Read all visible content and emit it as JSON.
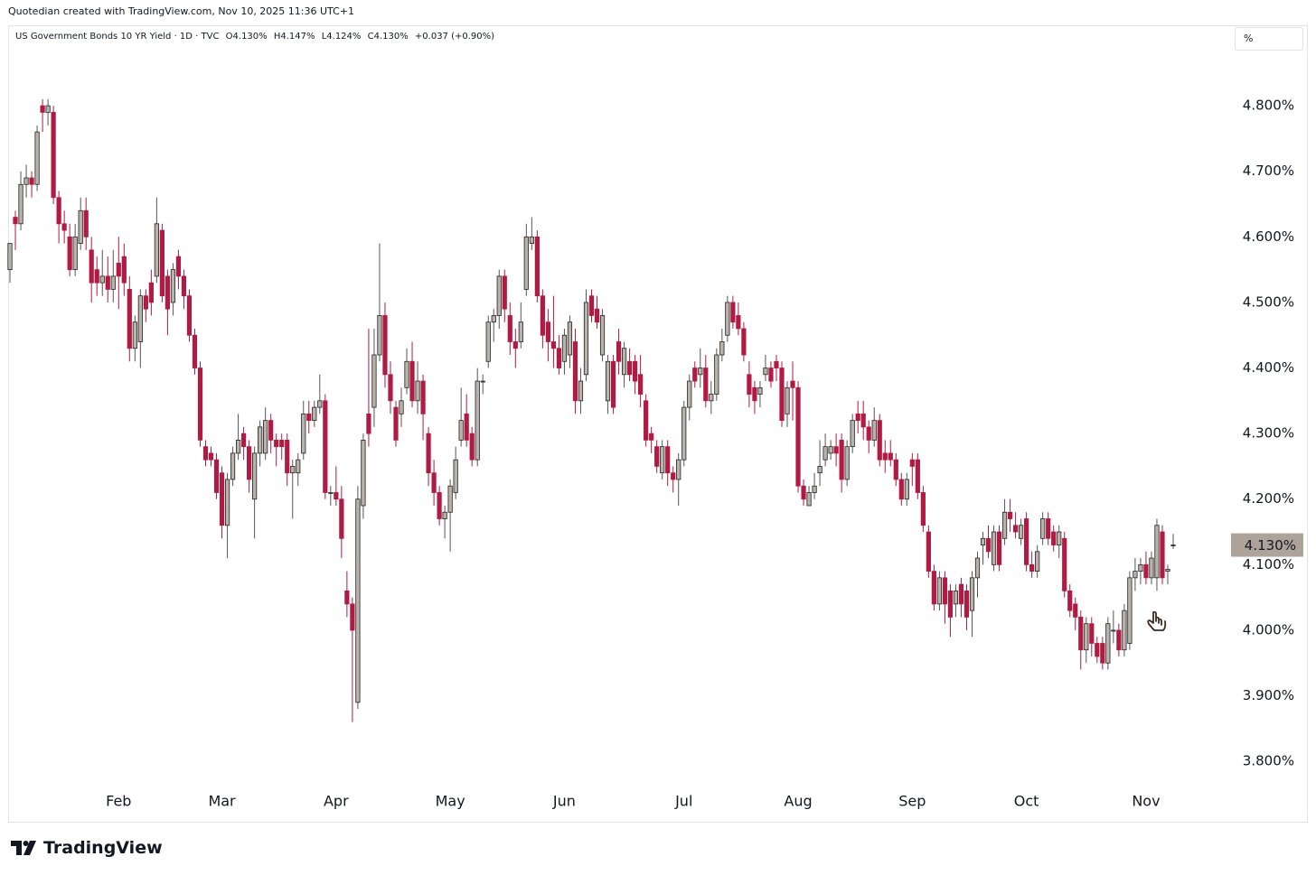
{
  "chart_data": {
    "type": "candlestick",
    "attribution": "Quotedian created with TradingView.com, Nov 10, 2025 11:36 UTC+1",
    "title": "US Government Bonds 10 YR Yield · 1D · TVC",
    "ohlc_labels": [
      "O4.130%",
      "H4.147%",
      "L4.124%",
      "C4.130%",
      "+0.037 (+0.90%)"
    ],
    "unit_button": "%",
    "logo_text": "TradingView",
    "up_color": "#bab3ac",
    "down_color": "#b11a42",
    "categories": [
      null,
      null,
      null,
      null,
      null,
      null,
      null,
      null,
      null,
      null,
      null,
      null,
      null,
      null,
      null,
      null,
      null,
      null,
      null,
      null,
      "Feb",
      null,
      null,
      null,
      null,
      null,
      null,
      null,
      null,
      null,
      null,
      null,
      null,
      null,
      null,
      null,
      null,
      null,
      null,
      "Mar",
      null,
      null,
      null,
      null,
      null,
      null,
      null,
      null,
      null,
      null,
      null,
      null,
      null,
      null,
      null,
      null,
      null,
      null,
      null,
      null,
      "Apr",
      null,
      null,
      null,
      null,
      null,
      null,
      null,
      null,
      null,
      null,
      null,
      null,
      null,
      null,
      null,
      null,
      null,
      null,
      null,
      null,
      "May",
      null,
      null,
      null,
      null,
      null,
      null,
      null,
      null,
      null,
      null,
      null,
      null,
      null,
      null,
      null,
      null,
      null,
      null,
      null,
      null,
      "Jun",
      null,
      null,
      null,
      null,
      null,
      null,
      null,
      null,
      null,
      null,
      null,
      null,
      null,
      null,
      null,
      null,
      null,
      null,
      null,
      null,
      null,
      "Jul",
      null,
      null,
      null,
      null,
      null,
      null,
      null,
      null,
      null,
      null,
      null,
      null,
      null,
      null,
      null,
      null,
      null,
      null,
      null,
      null,
      "Aug",
      null,
      null,
      null,
      null,
      null,
      null,
      null,
      null,
      null,
      null,
      null,
      null,
      null,
      null,
      null,
      null,
      null,
      null,
      null,
      null,
      "Sep",
      null,
      null,
      null,
      null,
      null,
      null,
      null,
      null,
      null,
      null,
      null,
      null,
      null,
      null,
      null,
      null,
      null,
      null,
      null,
      null,
      "Oct",
      null,
      null,
      null,
      null,
      null,
      null,
      null,
      null,
      null,
      null,
      null,
      null,
      null,
      null,
      null,
      null,
      null,
      null,
      null,
      null,
      null,
      "Nov",
      null,
      null,
      null,
      null,
      null
    ],
    "open": [
      4.55,
      4.63,
      4.62,
      4.68,
      4.69,
      4.68,
      4.8,
      4.79,
      4.79,
      4.66,
      4.62,
      4.6,
      4.55,
      4.59,
      4.64,
      4.58,
      4.55,
      4.53,
      4.54,
      4.52,
      4.56,
      4.57,
      4.52,
      4.43,
      4.44,
      4.51,
      4.53,
      4.54,
      4.61,
      4.54,
      4.5,
      4.57,
      4.54,
      4.51,
      4.45,
      4.4,
      4.28,
      4.27,
      4.26,
      4.24,
      4.16,
      4.23,
      4.27,
      4.3,
      4.28,
      4.2,
      4.27,
      4.27,
      4.32,
      4.29,
      4.29,
      4.29,
      4.24,
      4.24,
      4.27,
      4.33,
      4.32,
      4.34,
      4.35,
      4.21,
      4.21,
      4.2,
      4.06,
      4.04,
      3.89,
      4.19,
      4.33,
      4.34,
      4.42,
      4.48,
      4.39,
      4.34,
      4.33,
      4.37,
      4.41,
      4.35,
      4.38,
      4.3,
      4.24,
      4.21,
      4.17,
      4.18,
      4.21,
      4.29,
      4.33,
      4.3,
      4.26,
      4.38,
      4.41,
      4.47,
      4.48,
      4.54,
      4.48,
      4.44,
      4.44,
      4.52,
      4.59,
      4.6,
      4.51,
      4.47,
      4.44,
      4.43,
      4.41,
      4.42,
      4.44,
      4.35,
      4.39,
      4.51,
      4.49,
      4.42,
      4.35,
      4.41,
      4.44,
      4.39,
      4.41,
      4.41,
      4.39,
      4.35,
      4.3,
      4.28,
      4.24,
      4.28,
      4.24,
      4.23,
      4.26,
      4.34,
      4.4,
      4.39,
      4.4,
      4.35,
      4.36,
      4.42,
      4.45,
      4.5,
      4.48,
      4.46,
      4.39,
      4.37,
      4.36,
      4.39,
      4.4,
      4.41,
      4.4,
      4.33,
      4.38,
      4.37,
      4.22,
      4.19,
      4.21,
      4.24,
      4.26,
      4.27,
      4.28,
      4.29,
      4.23,
      4.28,
      4.33,
      4.33,
      4.31,
      4.29,
      4.32,
      4.27,
      4.27,
      4.26,
      4.23,
      4.2,
      4.26,
      4.26,
      4.21,
      4.15,
      4.09,
      4.04,
      4.08,
      4.06,
      4.04,
      4.07,
      4.06,
      4.03,
      4.08,
      4.13,
      4.14,
      4.1,
      4.15,
      4.14,
      4.18,
      4.16,
      4.14,
      4.17,
      4.1,
      4.09,
      4.14,
      4.17,
      4.15,
      4.13,
      4.14,
      4.06,
      4.04,
      4.02,
      3.97,
      4.01,
      3.98,
      3.98,
      3.95,
      4.0,
      4.0,
      3.97,
      3.98,
      4.08,
      4.09,
      4.1,
      4.08,
      4.08,
      4.15,
      4.09,
      4.13
    ],
    "high": [
      4.59,
      4.64,
      4.7,
      4.71,
      4.7,
      4.77,
      4.81,
      4.81,
      4.8,
      4.67,
      4.64,
      4.62,
      4.62,
      4.66,
      4.66,
      4.6,
      4.57,
      4.58,
      4.57,
      4.58,
      4.6,
      4.59,
      4.54,
      4.48,
      4.52,
      4.52,
      4.55,
      4.66,
      4.62,
      4.55,
      4.56,
      4.58,
      4.55,
      4.52,
      4.46,
      4.41,
      4.29,
      4.28,
      4.27,
      4.25,
      4.24,
      4.28,
      4.33,
      4.31,
      4.29,
      4.28,
      4.32,
      4.34,
      4.33,
      4.3,
      4.3,
      4.3,
      4.26,
      4.27,
      4.35,
      4.35,
      4.35,
      4.39,
      4.36,
      4.22,
      4.25,
      4.22,
      4.09,
      4.05,
      4.22,
      4.3,
      4.46,
      4.46,
      4.59,
      4.5,
      4.41,
      4.35,
      4.37,
      4.43,
      4.44,
      4.41,
      4.39,
      4.31,
      4.26,
      4.22,
      4.19,
      4.23,
      4.28,
      4.37,
      4.36,
      4.31,
      4.4,
      4.39,
      4.48,
      4.49,
      4.55,
      4.55,
      4.5,
      4.46,
      4.5,
      4.62,
      4.63,
      4.61,
      4.52,
      4.49,
      4.51,
      4.45,
      4.46,
      4.48,
      4.46,
      4.4,
      4.52,
      4.52,
      4.51,
      4.49,
      4.42,
      4.42,
      4.46,
      4.44,
      4.43,
      4.42,
      4.42,
      4.36,
      4.31,
      4.29,
      4.29,
      4.29,
      4.25,
      4.27,
      4.35,
      4.39,
      4.41,
      4.43,
      4.42,
      4.38,
      4.43,
      4.46,
      4.51,
      4.51,
      4.5,
      4.47,
      4.41,
      4.38,
      4.38,
      4.42,
      4.41,
      4.42,
      4.41,
      4.38,
      4.41,
      4.38,
      4.23,
      4.22,
      4.24,
      4.29,
      4.3,
      4.29,
      4.3,
      4.3,
      4.29,
      4.33,
      4.35,
      4.35,
      4.32,
      4.34,
      4.33,
      4.29,
      4.29,
      4.27,
      4.24,
      4.24,
      4.27,
      4.27,
      4.22,
      4.16,
      4.1,
      4.09,
      4.09,
      4.07,
      4.07,
      4.08,
      4.07,
      4.09,
      4.12,
      4.15,
      4.16,
      4.16,
      4.16,
      4.2,
      4.2,
      4.18,
      4.17,
      4.18,
      4.12,
      4.13,
      4.18,
      4.18,
      4.16,
      4.16,
      4.15,
      4.07,
      4.05,
      4.03,
      4.02,
      4.02,
      3.99,
      3.99,
      4.02,
      4.03,
      4.01,
      4.04,
      4.09,
      4.11,
      4.11,
      4.12,
      4.12,
      4.17,
      4.16,
      4.1,
      4.147
    ],
    "low": [
      4.53,
      4.58,
      4.61,
      4.66,
      4.66,
      4.67,
      4.76,
      4.77,
      4.65,
      4.59,
      4.59,
      4.54,
      4.54,
      4.58,
      4.58,
      4.5,
      4.51,
      4.51,
      4.5,
      4.5,
      4.49,
      4.51,
      4.41,
      4.41,
      4.4,
      4.47,
      4.48,
      4.53,
      4.5,
      4.45,
      4.48,
      4.52,
      4.49,
      4.44,
      4.39,
      4.28,
      4.25,
      4.25,
      4.2,
      4.14,
      4.11,
      4.22,
      4.26,
      4.26,
      4.21,
      4.14,
      4.25,
      4.26,
      4.27,
      4.25,
      4.26,
      4.22,
      4.17,
      4.22,
      4.26,
      4.3,
      4.31,
      4.33,
      4.2,
      4.19,
      4.19,
      4.11,
      4.02,
      3.86,
      3.88,
      4.17,
      4.28,
      4.31,
      4.41,
      4.37,
      4.33,
      4.28,
      4.31,
      4.36,
      4.34,
      4.33,
      4.29,
      4.22,
      4.19,
      4.16,
      4.14,
      4.12,
      4.2,
      4.28,
      4.28,
      4.25,
      4.25,
      4.36,
      4.4,
      4.44,
      4.46,
      4.47,
      4.42,
      4.4,
      4.43,
      4.51,
      4.58,
      4.5,
      4.43,
      4.41,
      4.4,
      4.39,
      4.39,
      4.4,
      4.33,
      4.33,
      4.38,
      4.47,
      4.46,
      4.41,
      4.33,
      4.33,
      4.39,
      4.37,
      4.38,
      4.36,
      4.34,
      4.28,
      4.27,
      4.24,
      4.23,
      4.22,
      4.21,
      4.19,
      4.25,
      4.32,
      4.37,
      4.37,
      4.34,
      4.33,
      4.35,
      4.41,
      4.44,
      4.46,
      4.45,
      4.41,
      4.34,
      4.33,
      4.34,
      4.38,
      4.37,
      4.38,
      4.31,
      4.31,
      4.32,
      4.21,
      4.19,
      4.19,
      4.2,
      4.22,
      4.25,
      4.26,
      4.25,
      4.21,
      4.22,
      4.27,
      4.3,
      4.29,
      4.27,
      4.28,
      4.25,
      4.24,
      4.25,
      4.22,
      4.19,
      4.19,
      4.22,
      4.2,
      4.15,
      4.08,
      4.03,
      4.03,
      4.01,
      3.99,
      4.02,
      4.02,
      4.0,
      3.99,
      4.05,
      4.1,
      4.11,
      4.09,
      4.09,
      4.13,
      4.15,
      4.14,
      4.13,
      4.09,
      4.08,
      4.08,
      4.13,
      4.13,
      4.12,
      4.11,
      4.05,
      4.02,
      4.0,
      3.94,
      3.95,
      3.96,
      3.95,
      3.94,
      3.94,
      3.98,
      3.96,
      3.96,
      3.97,
      4.06,
      4.07,
      4.07,
      4.07,
      4.06,
      4.07,
      4.07,
      4.124
    ],
    "close": [
      4.59,
      4.62,
      4.68,
      4.69,
      4.68,
      4.76,
      4.79,
      4.8,
      4.66,
      4.62,
      4.61,
      4.55,
      4.6,
      4.64,
      4.6,
      4.53,
      4.53,
      4.54,
      4.52,
      4.54,
      4.54,
      4.53,
      4.43,
      4.47,
      4.51,
      4.49,
      4.5,
      4.62,
      4.51,
      4.49,
      4.55,
      4.54,
      4.51,
      4.45,
      4.4,
      4.29,
      4.26,
      4.26,
      4.21,
      4.16,
      4.23,
      4.27,
      4.29,
      4.28,
      4.23,
      4.27,
      4.31,
      4.32,
      4.29,
      4.28,
      4.28,
      4.24,
      4.25,
      4.26,
      4.33,
      4.32,
      4.34,
      4.35,
      4.21,
      4.21,
      4.2,
      4.14,
      4.04,
      4.0,
      4.2,
      4.29,
      4.3,
      4.42,
      4.48,
      4.39,
      4.35,
      4.29,
      4.35,
      4.41,
      4.35,
      4.38,
      4.33,
      4.24,
      4.21,
      4.17,
      4.18,
      4.22,
      4.26,
      4.32,
      4.29,
      4.26,
      4.38,
      4.38,
      4.47,
      4.48,
      4.54,
      4.49,
      4.44,
      4.43,
      4.47,
      4.6,
      4.6,
      4.51,
      4.45,
      4.44,
      4.43,
      4.4,
      4.45,
      4.47,
      4.35,
      4.38,
      4.5,
      4.48,
      4.47,
      4.48,
      4.41,
      4.34,
      4.41,
      4.43,
      4.39,
      4.38,
      4.36,
      4.29,
      4.29,
      4.25,
      4.28,
      4.24,
      4.23,
      4.26,
      4.34,
      4.38,
      4.38,
      4.4,
      4.35,
      4.36,
      4.42,
      4.44,
      4.5,
      4.47,
      4.46,
      4.42,
      4.36,
      4.35,
      4.37,
      4.4,
      4.38,
      4.4,
      4.32,
      4.37,
      4.37,
      4.22,
      4.2,
      4.21,
      4.22,
      4.25,
      4.28,
      4.28,
      4.27,
      4.23,
      4.28,
      4.32,
      4.32,
      4.31,
      4.29,
      4.32,
      4.26,
      4.26,
      4.26,
      4.23,
      4.2,
      4.23,
      4.25,
      4.21,
      4.16,
      4.09,
      4.04,
      4.08,
      4.04,
      4.02,
      4.06,
      4.04,
      4.02,
      4.08,
      4.11,
      4.14,
      4.12,
      4.15,
      4.1,
      4.18,
      4.17,
      4.15,
      4.16,
      4.1,
      4.09,
      4.12,
      4.17,
      4.14,
      4.13,
      4.15,
      4.06,
      4.03,
      4.02,
      3.97,
      4.01,
      3.98,
      3.96,
      3.95,
      4.01,
      4.0,
      3.97,
      4.03,
      4.08,
      4.09,
      4.1,
      4.08,
      4.11,
      4.16,
      4.08,
      4.093,
      4.13
    ],
    "ylim": [
      3.763,
      4.92
    ],
    "yticks": [
      {
        "value": 4.8,
        "label": "4.800%"
      },
      {
        "value": 4.7,
        "label": "4.700%"
      },
      {
        "value": 4.6,
        "label": "4.600%"
      },
      {
        "value": 4.5,
        "label": "4.500%"
      },
      {
        "value": 4.4,
        "label": "4.400%"
      },
      {
        "value": 4.3,
        "label": "4.300%"
      },
      {
        "value": 4.2,
        "label": "4.200%"
      },
      {
        "value": 4.1,
        "label": "4.100%"
      },
      {
        "value": 4.0,
        "label": "4.000%"
      },
      {
        "value": 3.9,
        "label": "3.900%"
      },
      {
        "value": 3.8,
        "label": "3.800%"
      }
    ],
    "last_price": {
      "value": 4.13,
      "label": "4.130%"
    }
  }
}
